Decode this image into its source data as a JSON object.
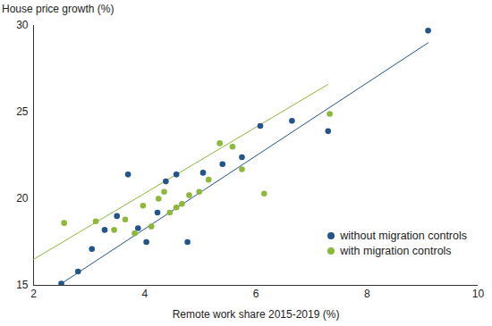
{
  "chart_data": {
    "type": "scatter",
    "y_label": "House price growth (%)",
    "x_label": "Remote work share 2015-2019 (%)",
    "xlim": [
      2,
      10
    ],
    "xticks": [
      2,
      4,
      6,
      8,
      10
    ],
    "ylim": [
      15,
      30
    ],
    "yticks": [
      15,
      20,
      25,
      30
    ],
    "grid": false,
    "legend": "lower right",
    "series": [
      {
        "name": "without migration controls",
        "color": "#24558a",
        "marker": "circle",
        "x": [
          2.5,
          2.8,
          3.05,
          3.28,
          3.5,
          3.7,
          3.88,
          4.03,
          4.23,
          4.38,
          4.57,
          4.77,
          5.05,
          5.4,
          5.75,
          6.08,
          6.65,
          7.3,
          9.1
        ],
        "values": [
          15.1,
          15.8,
          17.1,
          18.2,
          19.0,
          21.4,
          18.3,
          17.5,
          19.2,
          21.0,
          21.4,
          17.5,
          21.5,
          22.0,
          22.4,
          24.2,
          24.5,
          23.9,
          29.7
        ],
        "fit_x": [
          2.5,
          9.1
        ],
        "fit_y": [
          15.1,
          29.0
        ]
      },
      {
        "name": "with migration controls",
        "color": "#8db83a",
        "marker": "circle",
        "x": [
          2.55,
          3.12,
          3.45,
          3.65,
          3.82,
          3.97,
          4.12,
          4.25,
          4.35,
          4.45,
          4.57,
          4.67,
          4.8,
          4.98,
          5.15,
          5.35,
          5.58,
          5.75,
          6.15,
          7.33
        ],
        "values": [
          18.6,
          18.7,
          18.2,
          18.8,
          18.0,
          19.6,
          18.4,
          20.0,
          20.4,
          19.2,
          19.5,
          19.7,
          20.2,
          20.4,
          21.1,
          23.2,
          23.0,
          21.7,
          20.3,
          24.9
        ],
        "fit_x": [
          2.0,
          7.3
        ],
        "fit_y": [
          16.5,
          26.6
        ]
      }
    ]
  }
}
